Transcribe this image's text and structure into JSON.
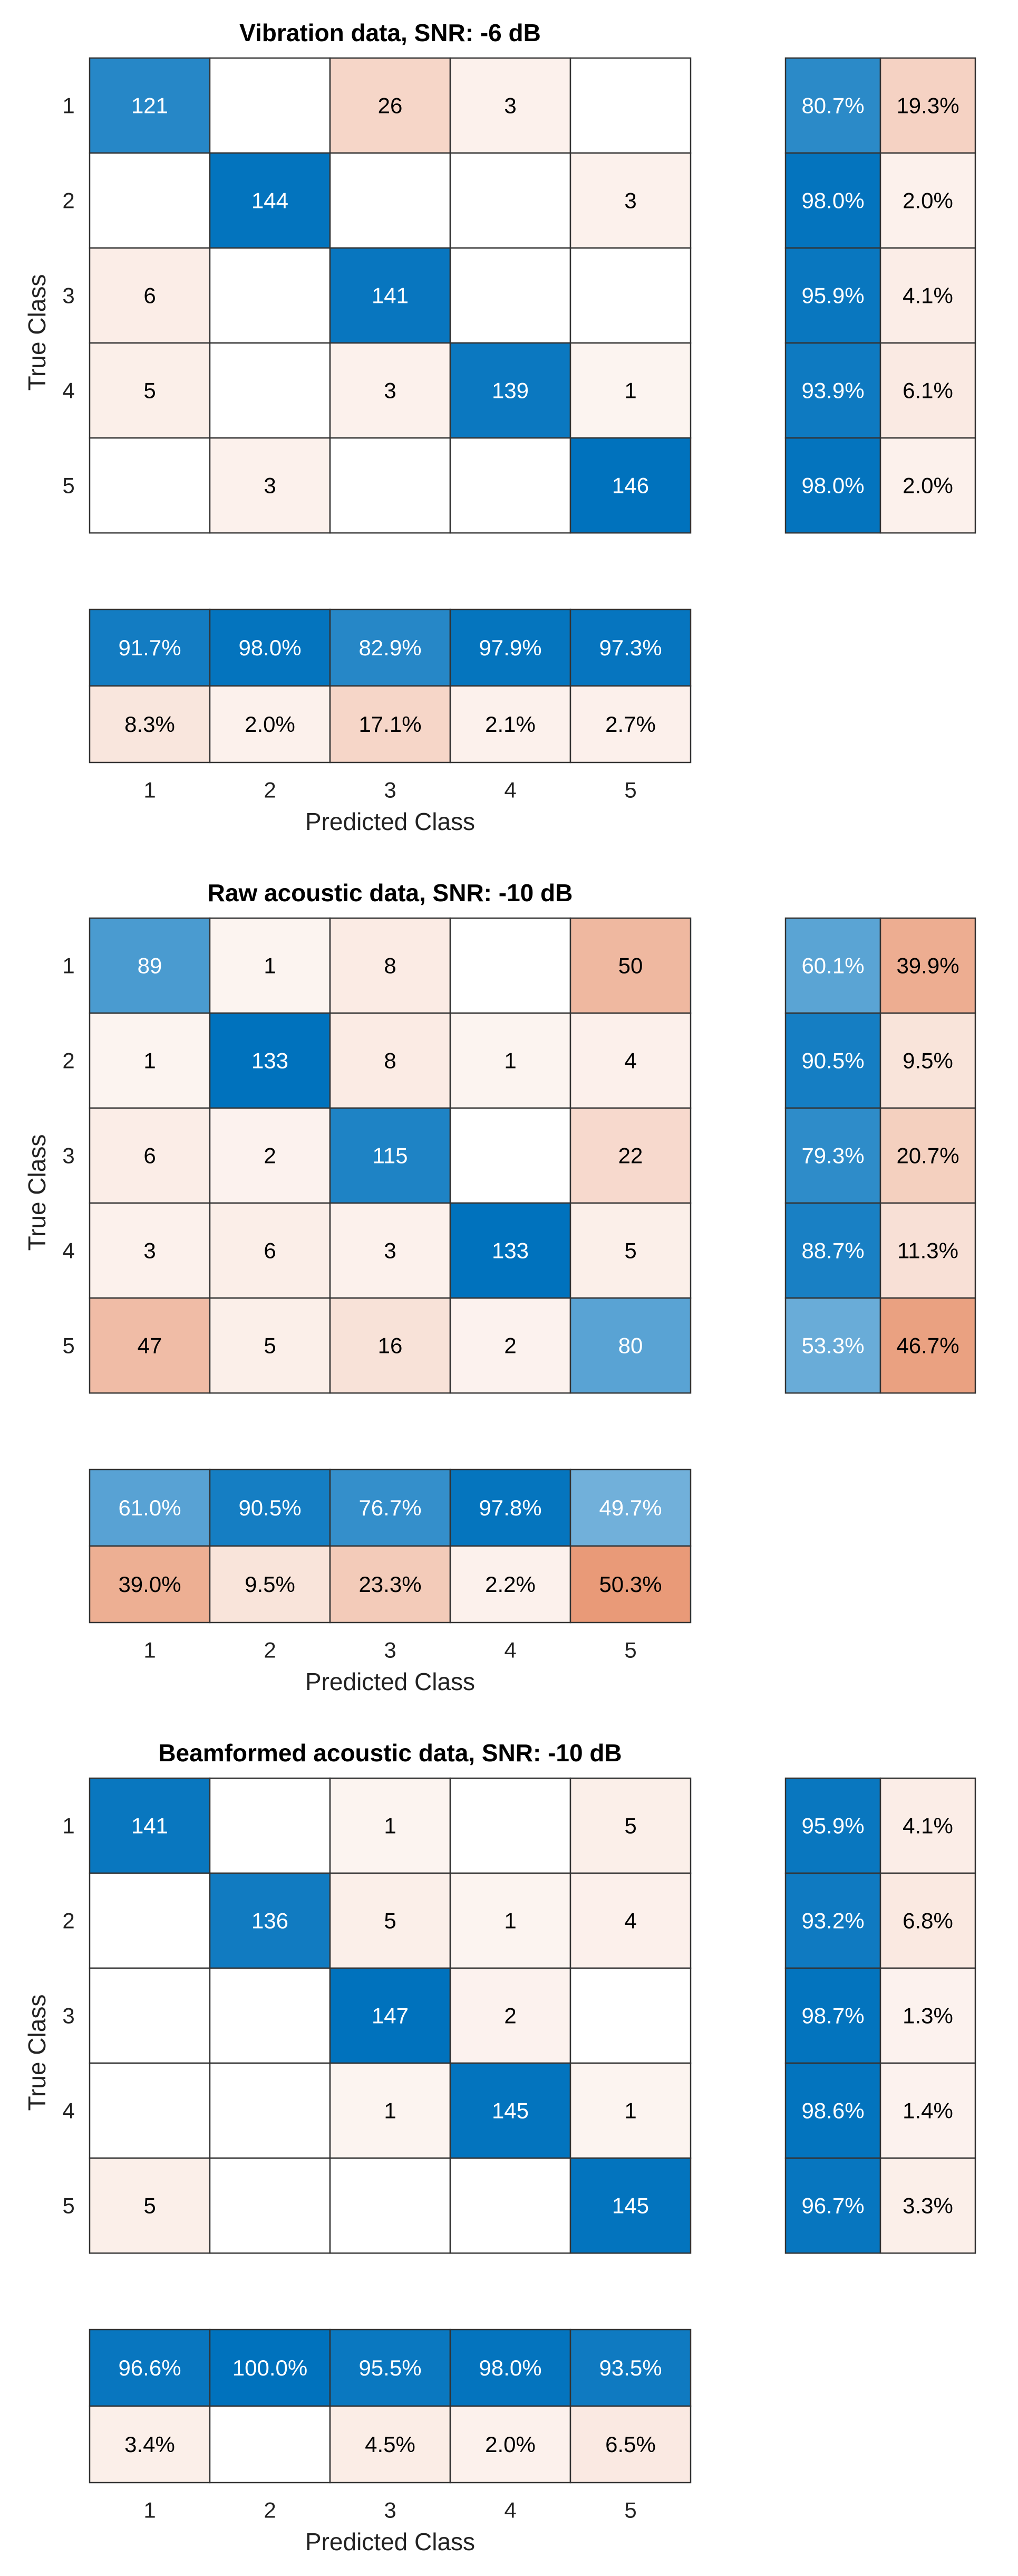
{
  "chart_data": [
    {
      "type": "heatmap",
      "title": "Vibration data, SNR: -6 dB",
      "xlabel": "Predicted Class",
      "ylabel": "True Class",
      "classes": [
        "1",
        "2",
        "3",
        "4",
        "5"
      ],
      "matrix": [
        [
          121,
          null,
          26,
          3,
          null
        ],
        [
          null,
          144,
          null,
          null,
          3
        ],
        [
          6,
          null,
          141,
          null,
          null
        ],
        [
          5,
          null,
          3,
          139,
          1
        ],
        [
          null,
          3,
          null,
          null,
          146
        ]
      ],
      "row_summary": [
        [
          "80.7%",
          "19.3%"
        ],
        [
          "98.0%",
          "2.0%"
        ],
        [
          "95.9%",
          "4.1%"
        ],
        [
          "93.9%",
          "6.1%"
        ],
        [
          "98.0%",
          "2.0%"
        ]
      ],
      "column_summary": [
        [
          "91.7%",
          "98.0%",
          "82.9%",
          "97.9%",
          "97.3%"
        ],
        [
          "8.3%",
          "2.0%",
          "17.1%",
          "2.1%",
          "2.7%"
        ]
      ]
    },
    {
      "type": "heatmap",
      "title": "Raw acoustic data, SNR: -10 dB",
      "xlabel": "Predicted Class",
      "ylabel": "True Class",
      "classes": [
        "1",
        "2",
        "3",
        "4",
        "5"
      ],
      "matrix": [
        [
          89,
          1,
          8,
          null,
          50
        ],
        [
          1,
          133,
          8,
          1,
          4
        ],
        [
          6,
          2,
          115,
          null,
          22
        ],
        [
          3,
          6,
          3,
          133,
          5
        ],
        [
          47,
          5,
          16,
          2,
          80
        ]
      ],
      "row_summary": [
        [
          "60.1%",
          "39.9%"
        ],
        [
          "90.5%",
          "9.5%"
        ],
        [
          "79.3%",
          "20.7%"
        ],
        [
          "88.7%",
          "11.3%"
        ],
        [
          "53.3%",
          "46.7%"
        ]
      ],
      "column_summary": [
        [
          "61.0%",
          "90.5%",
          "76.7%",
          "97.8%",
          "49.7%"
        ],
        [
          "39.0%",
          "9.5%",
          "23.3%",
          "2.2%",
          "50.3%"
        ]
      ]
    },
    {
      "type": "heatmap",
      "title": "Beamformed acoustic data, SNR: -10 dB",
      "xlabel": "Predicted Class",
      "ylabel": "True Class",
      "classes": [
        "1",
        "2",
        "3",
        "4",
        "5"
      ],
      "matrix": [
        [
          141,
          null,
          1,
          null,
          5
        ],
        [
          null,
          136,
          5,
          1,
          4
        ],
        [
          null,
          null,
          147,
          2,
          null
        ],
        [
          null,
          null,
          1,
          145,
          1
        ],
        [
          5,
          null,
          null,
          null,
          145
        ]
      ],
      "row_summary": [
        [
          "95.9%",
          "4.1%"
        ],
        [
          "93.2%",
          "6.8%"
        ],
        [
          "98.7%",
          "1.3%"
        ],
        [
          "98.6%",
          "1.4%"
        ],
        [
          "96.7%",
          "3.3%"
        ]
      ],
      "column_summary": [
        [
          "96.6%",
          "100.0%",
          "95.5%",
          "98.0%",
          "93.5%"
        ],
        [
          "3.4%",
          null,
          "4.5%",
          "2.0%",
          "6.5%"
        ]
      ]
    }
  ],
  "colors": {
    "correct": "#0072bd",
    "incorrect": "#d9541a",
    "background": "#ffffff",
    "gridline": "#333333",
    "text_dark": "#000000",
    "text_light": "#ffffff"
  }
}
